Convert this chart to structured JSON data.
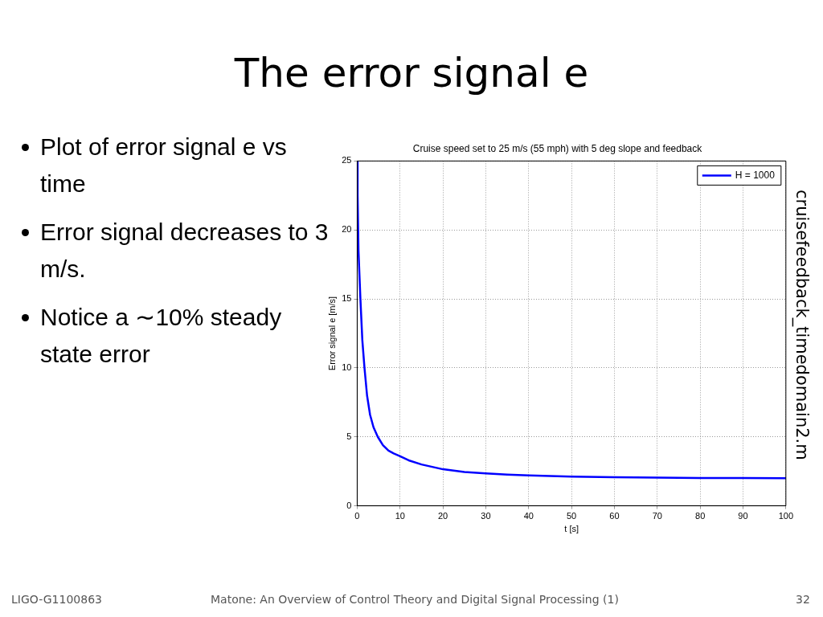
{
  "chart_data": {
    "type": "line",
    "title": "Cruise speed set to 25 m/s (55 mph) with 5 deg slope and feedback",
    "xlabel": "t [s]",
    "ylabel": "Error signal e [m/s]",
    "annotations": [
      "The error signal e",
      "Plot of error signal e vs time",
      "Error signal decreases to 3 m/s.",
      "Notice a ∼10% steady state error",
      "cruisefeedback_timedomain2.m",
      "LIGO-G1100863",
      "Matone: An Overview of Control Theory and Digital Signal Processing (1)",
      "32"
    ],
    "series": [
      {
        "name": "H = 1000",
        "color": "#0000ff",
        "x": [
          0,
          0.1,
          0.3,
          0.75,
          1.2,
          1.7,
          2.3,
          3,
          3.8,
          4.8,
          6,
          7.3,
          8.5,
          10,
          12,
          15,
          20,
          25,
          30,
          35,
          40,
          50,
          60,
          70,
          80,
          90,
          100
        ],
        "values": [
          25,
          22.5,
          18.5,
          15,
          12,
          10,
          8,
          6.6,
          5.7,
          5,
          4.4,
          4,
          3.8,
          3.6,
          3.3,
          3,
          2.65,
          2.45,
          2.35,
          2.27,
          2.2,
          2.12,
          2.07,
          2.04,
          2.02,
          2.01,
          2
        ]
      }
    ],
    "xlim": [
      0,
      100
    ],
    "xticks": [
      0,
      10,
      20,
      30,
      40,
      50,
      60,
      70,
      80,
      90,
      100
    ],
    "ylim": [
      0,
      25
    ],
    "yticks": [
      0,
      5,
      10,
      15,
      20,
      25
    ],
    "grid": true,
    "legend": "top right",
    "marker": "none",
    "line_style": "solid"
  }
}
